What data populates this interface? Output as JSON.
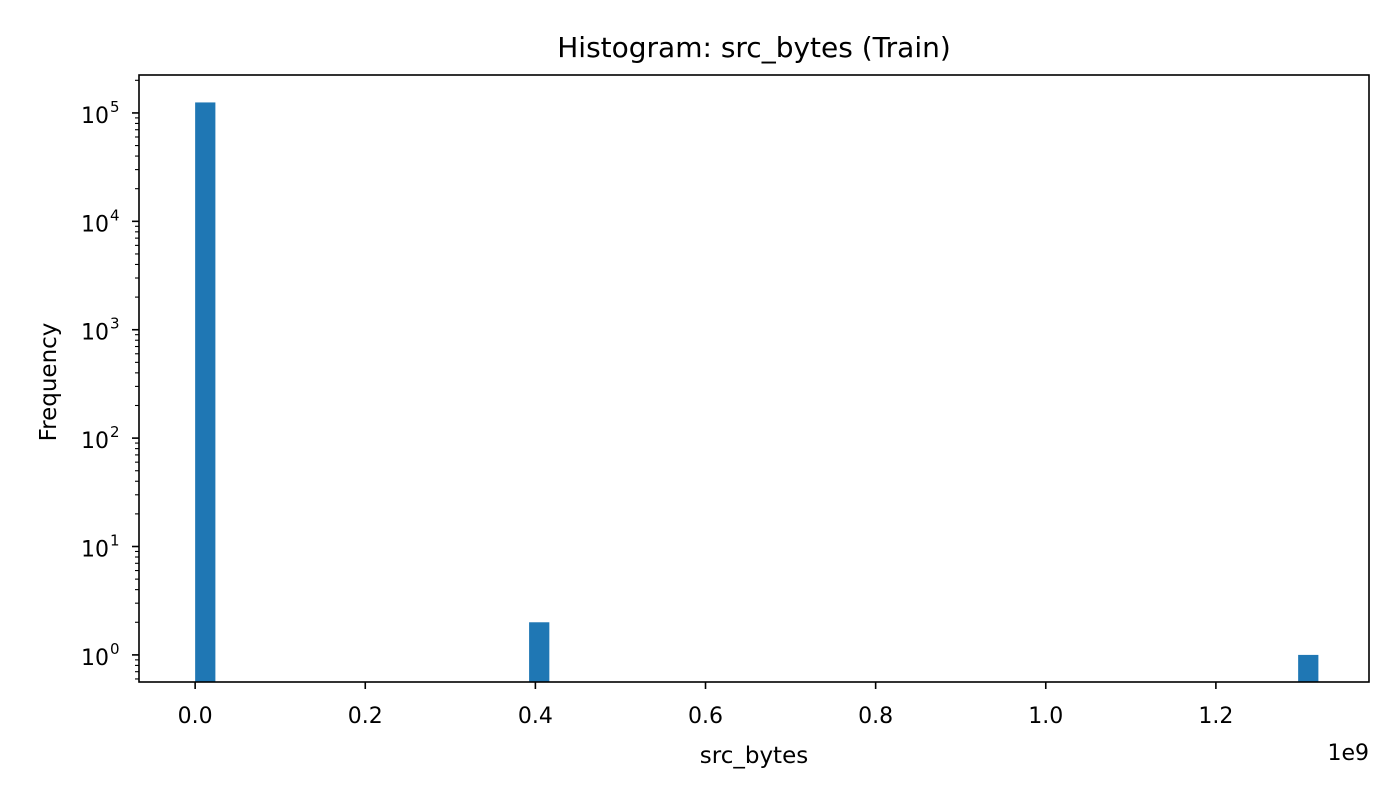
{
  "chart_data": {
    "type": "bar",
    "title": "Histogram: src_bytes (Train)",
    "xlabel": "src_bytes",
    "ylabel": "Frequency",
    "x_offset_label": "1e9",
    "xscale_factor": 1000000000,
    "yscale": "log",
    "xlim": [
      -0.066,
      1.38
    ],
    "ylim_exponent": [
      -0.25,
      5.35
    ],
    "grid": false,
    "legend": "none",
    "bar_color": "#1f77b4",
    "x_ticks": [
      {
        "value": 0.0,
        "label": "0.0"
      },
      {
        "value": 0.2,
        "label": "0.2"
      },
      {
        "value": 0.4,
        "label": "0.4"
      },
      {
        "value": 0.6,
        "label": "0.6"
      },
      {
        "value": 0.8,
        "label": "0.8"
      },
      {
        "value": 1.0,
        "label": "1.0"
      },
      {
        "value": 1.2,
        "label": "1.2"
      }
    ],
    "y_ticks": [
      {
        "exp": 0,
        "base": "10",
        "sup": "0"
      },
      {
        "exp": 1,
        "base": "10",
        "sup": "1"
      },
      {
        "exp": 2,
        "base": "10",
        "sup": "2"
      },
      {
        "exp": 3,
        "base": "10",
        "sup": "3"
      },
      {
        "exp": 4,
        "base": "10",
        "sup": "4"
      },
      {
        "exp": 5,
        "base": "10",
        "sup": "5"
      }
    ],
    "bars": [
      {
        "x0": 0.0,
        "x1": 0.0238,
        "value": 125000
      },
      {
        "x0": 0.3926,
        "x1": 0.4164,
        "value": 2
      },
      {
        "x0": 1.2967,
        "x1": 1.3205,
        "value": 1
      }
    ]
  }
}
